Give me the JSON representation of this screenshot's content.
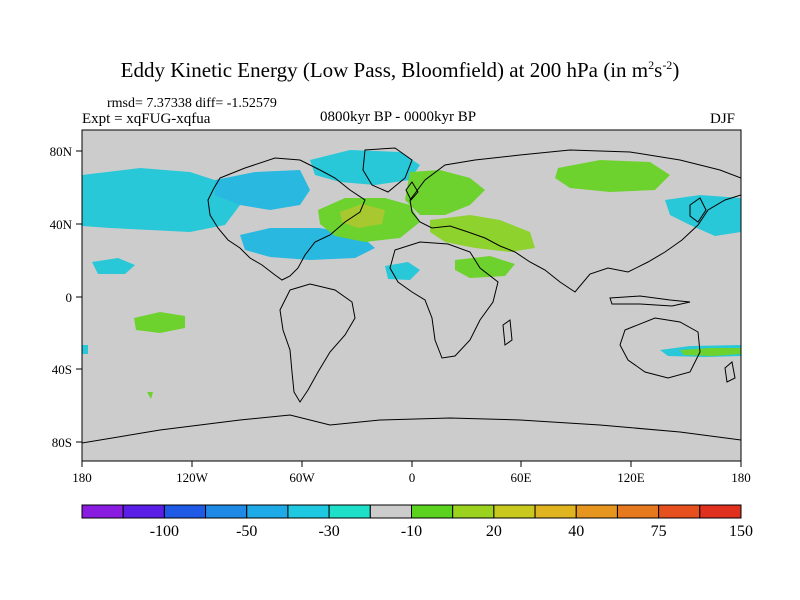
{
  "title": {
    "main": "Eddy Kinetic Energy (Low Pass, Bloomfield) at 200 hPa (in m",
    "exp1": "2",
    "mid": "s",
    "exp2": "-2",
    "close": ")"
  },
  "stats": "rmsd= 7.37338  diff= -1.52579",
  "experiment": "Expt = xqFUG-xqfua",
  "period": "0800kyr BP - 0000kyr BP",
  "season": "DJF",
  "lon_ticks": [
    "180",
    "120W",
    "60W",
    "0",
    "60E",
    "120E",
    "180"
  ],
  "lat_ticks": [
    "80N",
    "40N",
    "0",
    "40S",
    "80S"
  ],
  "colorbar": {
    "colors": [
      "#8a1be0",
      "#5a1ee6",
      "#1e5ae6",
      "#1e8ae6",
      "#1eaae6",
      "#1ec8e0",
      "#1ee0c8",
      "#cccccc",
      "#5ad21e",
      "#9ad21e",
      "#c8c81e",
      "#e0b41e",
      "#e6961e",
      "#e6781e",
      "#e6501e",
      "#e0301e"
    ],
    "labels": [
      "-100",
      "-50",
      "-30",
      "-10",
      "20",
      "40",
      "75",
      "150"
    ]
  },
  "anomalies": [
    {
      "name": "north-atlantic-positive",
      "color": "#6ed22e",
      "lon": -20,
      "lat": 45
    },
    {
      "name": "north-atlantic-core",
      "color": "#a8c830",
      "lon": -25,
      "lat": 46
    },
    {
      "name": "europe-positive",
      "color": "#6ed22e",
      "lon": 20,
      "lat": 50
    },
    {
      "name": "mediterranean-positive",
      "color": "#8ed22e",
      "lon": 35,
      "lat": 32
    },
    {
      "name": "siberia-positive",
      "color": "#6ed22e",
      "lon": 95,
      "lat": 66
    },
    {
      "name": "pacific-south-positive",
      "color": "#6ed22e",
      "lon": -135,
      "lat": -12
    },
    {
      "name": "north-america-negative",
      "color": "#28c8d8",
      "lon": -110,
      "lat": 45
    },
    {
      "name": "atlantic-negative",
      "color": "#28b8e0",
      "lon": -60,
      "lat": 38
    },
    {
      "name": "arctic-negative",
      "color": "#28c8d8",
      "lon": -20,
      "lat": 65
    }
  ]
}
